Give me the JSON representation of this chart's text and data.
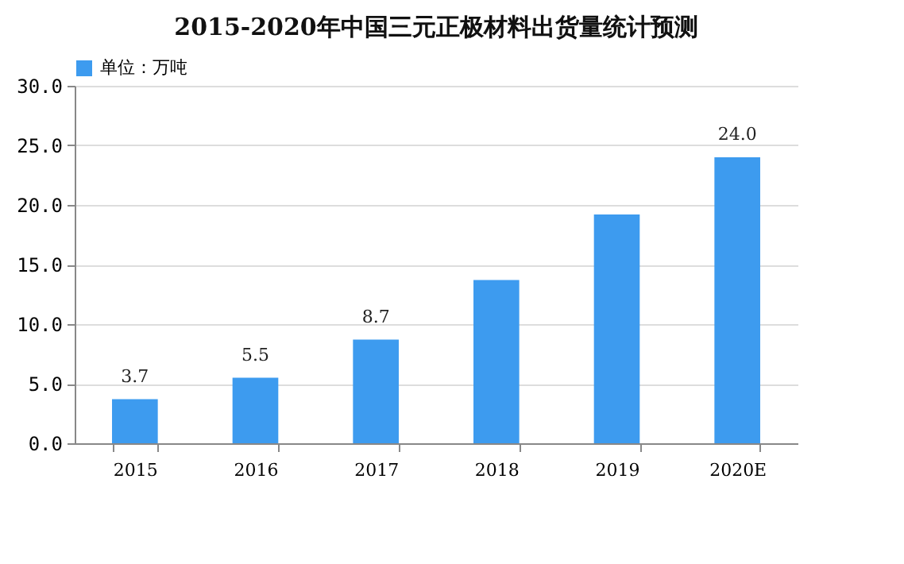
{
  "chart_data": {
    "type": "bar",
    "title": "2015-2020年中国三元正极材料出货量统计预测",
    "categories": [
      "2015",
      "2016",
      "2017",
      "2018",
      "2019",
      "2020E"
    ],
    "series": [
      {
        "name": "单位：万吨",
        "color": "#3d9bef",
        "values": [
          3.7,
          5.5,
          8.7,
          13.7,
          19.2,
          24.0
        ]
      }
    ],
    "value_labels": [
      "3.7",
      "5.5",
      "8.7",
      null,
      null,
      "24.0"
    ],
    "ylim": [
      0,
      30
    ],
    "yticks": [
      {
        "value": 0,
        "label": "0.0"
      },
      {
        "value": 5,
        "label": "5.0"
      },
      {
        "value": 10,
        "label": "10.0"
      },
      {
        "value": 15,
        "label": "15.0"
      },
      {
        "value": 20,
        "label": "20.0"
      },
      {
        "value": 25,
        "label": "25.0"
      },
      {
        "value": 30,
        "label": "30.0"
      }
    ],
    "grid": "y",
    "legend": "top"
  }
}
